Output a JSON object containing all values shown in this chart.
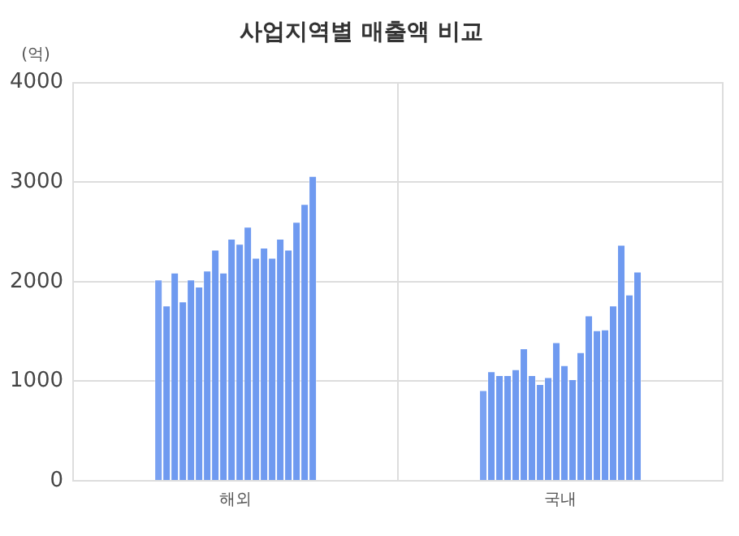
{
  "chart_data": {
    "type": "bar",
    "title": "사업지역별 매출액 비교",
    "ylabel": "(억)",
    "categories": [
      "해외",
      "국내"
    ],
    "series": [
      {
        "color": "#7aa2f2",
        "values": [
          2020,
          910
        ]
      },
      {
        "color": "#6f9af0",
        "values": [
          1760,
          1100
        ]
      },
      {
        "color": "#6f9af0",
        "values": [
          2090,
          1060
        ]
      },
      {
        "color": "#6f9af0",
        "values": [
          1800,
          1060
        ]
      },
      {
        "color": "#6f9af0",
        "values": [
          2020,
          1120
        ]
      },
      {
        "color": "#6f9af0",
        "values": [
          1950,
          1330
        ]
      },
      {
        "color": "#6f9af0",
        "values": [
          2110,
          1060
        ]
      },
      {
        "color": "#6f9af0",
        "values": [
          2320,
          970
        ]
      },
      {
        "color": "#6f9af0",
        "values": [
          2090,
          1040
        ]
      },
      {
        "color": "#6f9af0",
        "values": [
          2430,
          1390
        ]
      },
      {
        "color": "#6f9af0",
        "values": [
          2380,
          1160
        ]
      },
      {
        "color": "#6f9af0",
        "values": [
          2550,
          1020
        ]
      },
      {
        "color": "#6f9af0",
        "values": [
          2240,
          1290
        ]
      },
      {
        "color": "#6f9af0",
        "values": [
          2340,
          1660
        ]
      },
      {
        "color": "#6f9af0",
        "values": [
          2240,
          1510
        ]
      },
      {
        "color": "#6f9af0",
        "values": [
          2430,
          1520
        ]
      },
      {
        "color": "#6f9af0",
        "values": [
          2320,
          1760
        ]
      },
      {
        "color": "#6f9af0",
        "values": [
          2600,
          2370
        ]
      },
      {
        "color": "#6f9af0",
        "values": [
          2780,
          1870
        ]
      },
      {
        "color": "#6f9af0",
        "values": [
          3060,
          2100
        ]
      }
    ],
    "ylim": [
      0,
      4000
    ],
    "yticks": [
      0,
      1000,
      2000,
      3000,
      4000
    ],
    "grid": true,
    "legend": false
  }
}
